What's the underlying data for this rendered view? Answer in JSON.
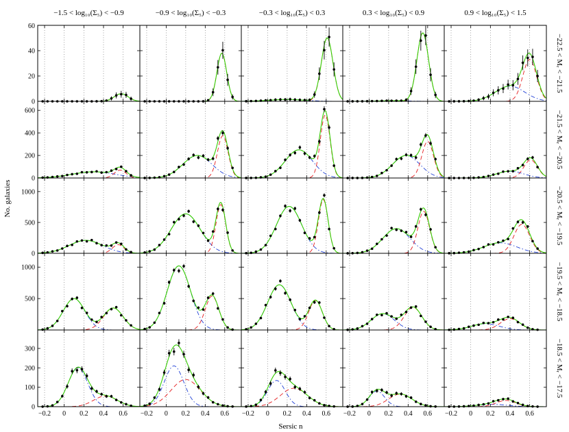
{
  "figure": {
    "xlabel": "Sersic n",
    "ylabel": "No. galaxies"
  },
  "chart_data": {
    "type": "line",
    "description_of_layout": "5x5 grid of histograms with fitted curves; columns = density bins, rows = magnitude bins",
    "columns": [
      "−1.5 < log₁₀(Σ₅) < −0.9",
      "−0.9 < log₁₀(Σ₅) < −0.3",
      "−0.3 < log₁₀(Σ₅) < 0.3",
      "0.3 < log₁₀(Σ₅) < 0.9",
      "0.9 < log₁₀(Σ₅) < 1.5"
    ],
    "rows": [
      "−22.5 < Mᵣ < −21.5",
      "−21.5 < Mᵣ < −20.5",
      "−20.5 < Mᵣ < −19.5",
      "−19.5 < Mᵣ < −18.5",
      "−18.5 < Mᵣ < −17.5"
    ],
    "xlim": [
      -0.27,
      0.77
    ],
    "xticks": [
      -0.2,
      0,
      0.2,
      0.4,
      0.6
    ],
    "xtick_labels": [
      "−0.2",
      "0",
      "0.2",
      "0.4",
      "0.6"
    ],
    "row_scales": [
      {
        "ylim": [
          0,
          60
        ],
        "yticks": [
          0,
          20,
          40,
          60
        ],
        "ytick_labels": [
          "0",
          "20",
          "40",
          "60"
        ]
      },
      {
        "ylim": [
          0,
          680
        ],
        "yticks": [
          0,
          200,
          400,
          600
        ],
        "ytick_labels": [
          "0",
          "200",
          "400",
          "600"
        ]
      },
      {
        "ylim": [
          0,
          1220
        ],
        "yticks": [
          0,
          500,
          1000
        ],
        "ytick_labels": [
          "0",
          "500",
          "1000"
        ]
      },
      {
        "ylim": [
          0,
          1220
        ],
        "yticks": [
          0,
          500,
          1000
        ],
        "ytick_labels": [
          "",
          "500",
          "1000"
        ]
      },
      {
        "ylim": [
          0,
          395
        ],
        "yticks": [
          0,
          100,
          200,
          300,
          400
        ],
        "ytick_labels": [
          "0",
          "100",
          "200",
          "300",
          "400"
        ]
      }
    ],
    "curve_styles": {
      "total": {
        "color": "#33cc00",
        "dash": ""
      },
      "disk": {
        "color": "#1f3fd6",
        "dash": "6,3,1.5,3"
      },
      "bulge": {
        "color": "#e41a1c",
        "dash": "6,4"
      },
      "points": {
        "color": "#000000"
      }
    },
    "panels": [
      [
        {
          "disk": [
            0,
            0.15,
            0.15
          ],
          "bulge": [
            6,
            0.58,
            0.07
          ]
        },
        {
          "disk": [
            0,
            0.15,
            0.15
          ],
          "bulge": [
            38,
            0.57,
            0.05
          ]
        },
        {
          "disk": [
            1.5,
            0.2,
            0.18
          ],
          "bulge": [
            50,
            0.61,
            0.06
          ]
        },
        {
          "disk": [
            0.5,
            0.25,
            0.15
          ],
          "bulge": [
            54,
            0.55,
            0.06
          ]
        },
        {
          "disk": [
            12,
            0.4,
            0.15
          ],
          "bulge": [
            33,
            0.6,
            0.07
          ]
        }
      ],
      [
        {
          "disk": [
            55,
            0.3,
            0.22
          ],
          "bulge": [
            70,
            0.57,
            0.06
          ]
        },
        {
          "disk": [
            200,
            0.32,
            0.15
          ],
          "bulge": [
            375,
            0.58,
            0.055
          ]
        },
        {
          "disk": [
            250,
            0.32,
            0.14
          ],
          "bulge": [
            560,
            0.59,
            0.05
          ]
        },
        {
          "disk": [
            200,
            0.38,
            0.14
          ],
          "bulge": [
            325,
            0.6,
            0.06
          ]
        },
        {
          "disk": [
            60,
            0.4,
            0.14
          ],
          "bulge": [
            160,
            0.61,
            0.07
          ]
        }
      ],
      [
        {
          "disk": [
            210,
            0.22,
            0.17
          ],
          "bulge": [
            140,
            0.55,
            0.06
          ]
        },
        {
          "disk": [
            640,
            0.2,
            0.15
          ],
          "bulge": [
            790,
            0.56,
            0.05
          ]
        },
        {
          "disk": [
            760,
            0.22,
            0.13
          ],
          "bulge": [
            870,
            0.57,
            0.05
          ]
        },
        {
          "disk": [
            400,
            0.28,
            0.14
          ],
          "bulge": [
            680,
            0.56,
            0.06
          ]
        },
        {
          "disk": [
            170,
            0.3,
            0.17
          ],
          "bulge": [
            470,
            0.52,
            0.08
          ]
        }
      ],
      [
        {
          "disk": [
            500,
            0.1,
            0.11
          ],
          "bulge": [
            350,
            0.5,
            0.1
          ]
        },
        {
          "disk": [
            1020,
            0.13,
            0.12
          ],
          "bulge": [
            540,
            0.47,
            0.07
          ]
        },
        {
          "disk": [
            720,
            0.12,
            0.12
          ],
          "bulge": [
            470,
            0.49,
            0.07
          ]
        },
        {
          "disk": [
            260,
            0.14,
            0.12
          ],
          "bulge": [
            360,
            0.45,
            0.09
          ]
        },
        {
          "disk": [
            100,
            0.15,
            0.14
          ],
          "bulge": [
            180,
            0.4,
            0.1
          ]
        }
      ],
      [
        {
          "disk": [
            200,
            0.14,
            0.1
          ],
          "bulge": [
            55,
            0.42,
            0.12
          ]
        },
        {
          "disk": [
            210,
            0.08,
            0.1
          ],
          "bulge": [
            140,
            0.2,
            0.15
          ]
        },
        {
          "disk": [
            135,
            0.09,
            0.09
          ],
          "bulge": [
            95,
            0.27,
            0.14
          ]
        },
        {
          "disk": [
            80,
            0.08,
            0.08
          ],
          "bulge": [
            65,
            0.32,
            0.12
          ]
        },
        {
          "disk": [
            12,
            0.22,
            0.15
          ],
          "bulge": [
            32,
            0.36,
            0.1
          ]
        }
      ]
    ]
  }
}
